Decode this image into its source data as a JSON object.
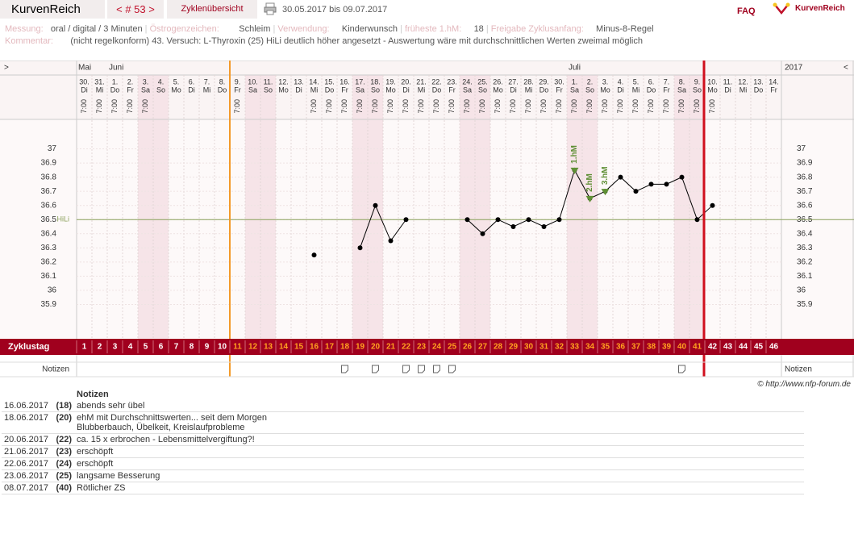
{
  "header": {
    "brand": "KurvenReich",
    "cycle_nav": "< # 53 >",
    "overview": "Zyklenübersicht",
    "period": "30.05.2017 bis 09.07.2017",
    "faq": "FAQ",
    "logo": "KurvenReich"
  },
  "info": {
    "measure_label": "Messung:",
    "measure": "oral / digital / 3 Minuten",
    "estrogen_label": "Östrogenzeichen:",
    "estrogen": "Schleim",
    "usage_label": "Verwendung:",
    "usage": "Kinderwunsch",
    "earliest_label": "früheste 1.hM:",
    "earliest": "18",
    "release_label": "Freigabe Zyklusanfang:",
    "release": "Minus-8-Regel",
    "comment_label": "Kommentar:",
    "comment": "(nicht regelkonform) 43. Versuch: L-Thyroxin (25) HiLi deutlich höher angesetzt - Auswertung wäre mit durchschnittlichen Werten zweimal möglich"
  },
  "chart_data": {
    "type": "line",
    "nav_left": ">",
    "nav_right": "<",
    "year": "2017",
    "months": [
      "Mai",
      null,
      "Juni",
      null,
      null,
      null,
      null,
      null,
      null,
      null,
      null,
      null,
      null,
      null,
      null,
      null,
      null,
      null,
      null,
      null,
      null,
      null,
      null,
      null,
      null,
      null,
      null,
      null,
      null,
      null,
      null,
      null,
      "Juli",
      null,
      null,
      null,
      null,
      null,
      null,
      null,
      null,
      null,
      null,
      null,
      null,
      null
    ],
    "categories": [
      "30.",
      "31.",
      "1.",
      "2.",
      "3.",
      "4.",
      "5.",
      "6.",
      "7.",
      "8.",
      "9.",
      "10.",
      "11.",
      "12.",
      "13.",
      "14.",
      "15.",
      "16.",
      "17.",
      "18.",
      "19.",
      "20.",
      "21.",
      "22.",
      "23.",
      "24.",
      "25.",
      "26.",
      "27.",
      "28.",
      "29.",
      "30.",
      "1.",
      "2.",
      "3.",
      "4.",
      "5.",
      "6.",
      "7.",
      "8.",
      "9.",
      "10.",
      "11.",
      "12.",
      "13.",
      "14."
    ],
    "weekdays": [
      "Di",
      "Mi",
      "Do",
      "Fr",
      "Sa",
      "So",
      "Mo",
      "Di",
      "Mi",
      "Do",
      "Fr",
      "Sa",
      "So",
      "Mo",
      "Di",
      "Mi",
      "Do",
      "Fr",
      "Sa",
      "So",
      "Mo",
      "Di",
      "Mi",
      "Do",
      "Fr",
      "Sa",
      "So",
      "Mo",
      "Di",
      "Mi",
      "Do",
      "Fr",
      "Sa",
      "So",
      "Mo",
      "Di",
      "Mi",
      "Do",
      "Fr",
      "Sa",
      "So",
      "Mo",
      "Di",
      "Mi",
      "Do",
      "Fr"
    ],
    "times": [
      "7:00",
      "7:00",
      "7:00",
      "7:00",
      "7:00",
      null,
      null,
      null,
      null,
      null,
      "7:00",
      null,
      null,
      null,
      null,
      "7:00",
      "7:00",
      "7:00",
      "7:00",
      "7:00",
      "7:00",
      "7:00",
      "7:00",
      "7:00",
      "7:00",
      "7:00",
      "7:00",
      "7:00",
      "7:00",
      "7:00",
      "7:00",
      "7:00",
      "7:00",
      "7:00",
      "7:00",
      "7:00",
      "7:00",
      "7:00",
      "7:00",
      "7:00",
      "7:00",
      "7:00",
      null,
      null,
      null,
      null
    ],
    "values": [
      null,
      null,
      null,
      null,
      null,
      null,
      null,
      null,
      null,
      null,
      null,
      null,
      null,
      null,
      null,
      36.25,
      null,
      null,
      36.3,
      36.6,
      36.35,
      36.5,
      null,
      null,
      null,
      36.5,
      36.4,
      36.5,
      36.45,
      36.5,
      36.45,
      36.5,
      36.85,
      36.65,
      36.7,
      36.8,
      36.7,
      36.75,
      36.75,
      36.8,
      36.5,
      36.6,
      null,
      null,
      null,
      null
    ],
    "markers": [
      null,
      null,
      null,
      null,
      null,
      null,
      null,
      null,
      null,
      null,
      null,
      null,
      null,
      null,
      null,
      null,
      null,
      null,
      null,
      null,
      null,
      null,
      null,
      null,
      null,
      null,
      null,
      null,
      null,
      null,
      null,
      null,
      "1.hM",
      "2.hM",
      "3.hM",
      null,
      null,
      null,
      null,
      null,
      null,
      null,
      null,
      null,
      null,
      null
    ],
    "ylim": [
      35.8,
      37.1
    ],
    "yticks": [
      35.9,
      36,
      36.1,
      36.2,
      36.3,
      36.4,
      36.5,
      36.6,
      36.7,
      36.8,
      36.9,
      37
    ],
    "cover_line": {
      "value": 36.5,
      "label": "HiLi"
    },
    "cycle_day_label": "Zyklustag",
    "cycle_days": [
      1,
      2,
      3,
      4,
      5,
      6,
      7,
      8,
      9,
      10,
      11,
      12,
      13,
      14,
      15,
      16,
      17,
      18,
      19,
      20,
      21,
      22,
      23,
      24,
      25,
      26,
      27,
      28,
      29,
      30,
      31,
      32,
      33,
      34,
      35,
      36,
      37,
      38,
      39,
      40,
      41,
      42,
      43,
      44,
      45,
      46
    ],
    "notes_label": "Notizen",
    "note_icons": [
      false,
      false,
      false,
      false,
      false,
      false,
      false,
      false,
      false,
      false,
      false,
      false,
      false,
      false,
      false,
      false,
      false,
      true,
      false,
      true,
      false,
      true,
      true,
      true,
      true,
      false,
      false,
      false,
      false,
      false,
      false,
      false,
      false,
      false,
      false,
      false,
      false,
      false,
      false,
      true,
      false,
      false,
      false,
      false,
      false,
      false
    ],
    "color": "#000000"
  },
  "copyright": "© http://www.nfp-forum.de",
  "notes": {
    "header": "Notizen",
    "rows": [
      [
        "16.06.2017",
        "(18)",
        "abends sehr übel"
      ],
      [
        "18.06.2017",
        "(20)",
        "ehM mit Durchschnittswerten... seit dem Morgen",
        "Blubberbauch, Übelkeit, Kreislaufprobleme"
      ],
      [
        "20.06.2017",
        "(22)",
        "ca. 15 x erbrochen - Lebensmittelvergiftung?!"
      ],
      [
        "21.06.2017",
        "(23)",
        "erschöpft"
      ],
      [
        "22.06.2017",
        "(24)",
        "erschöpft"
      ],
      [
        "23.06.2017",
        "(25)",
        "langsame Besserung"
      ],
      [
        "08.07.2017",
        "(40)",
        "Rötlicher ZS"
      ]
    ]
  }
}
